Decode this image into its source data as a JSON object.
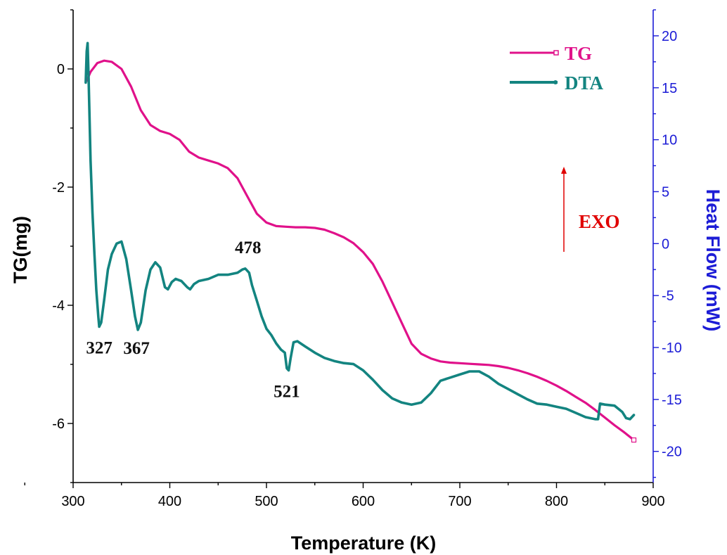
{
  "chart_data": {
    "type": "line",
    "title": "",
    "xlabel": "Temperature (K)",
    "ylabel": "TG(mg)",
    "y2label": "Heat Flow (mW)",
    "xlim": [
      300,
      900
    ],
    "ylim": [
      -7,
      1
    ],
    "y2lim": [
      -23,
      22.5
    ],
    "x_ticks": [
      "300",
      "400",
      "500",
      "600",
      "700",
      "800",
      "900"
    ],
    "y_ticks": [
      "0",
      "-2",
      "-4",
      "-6"
    ],
    "y2_ticks": [
      "20",
      "15",
      "10",
      "5",
      "0",
      "-5",
      "-10",
      "-15",
      "-20"
    ],
    "legend": {
      "position": "top-right",
      "entries": [
        "TG",
        "DTA"
      ]
    },
    "series": [
      {
        "name": "TG",
        "axis": "left",
        "color": "#e0118a",
        "points": [
          [
            314,
            -0.2
          ],
          [
            318,
            -0.05
          ],
          [
            325,
            0.1
          ],
          [
            332,
            0.14
          ],
          [
            340,
            0.12
          ],
          [
            350,
            0.0
          ],
          [
            360,
            -0.3
          ],
          [
            370,
            -0.7
          ],
          [
            380,
            -0.95
          ],
          [
            390,
            -1.05
          ],
          [
            400,
            -1.1
          ],
          [
            410,
            -1.2
          ],
          [
            420,
            -1.4
          ],
          [
            430,
            -1.5
          ],
          [
            440,
            -1.55
          ],
          [
            450,
            -1.6
          ],
          [
            460,
            -1.68
          ],
          [
            470,
            -1.85
          ],
          [
            480,
            -2.15
          ],
          [
            490,
            -2.45
          ],
          [
            500,
            -2.6
          ],
          [
            510,
            -2.66
          ],
          [
            520,
            -2.67
          ],
          [
            530,
            -2.68
          ],
          [
            540,
            -2.68
          ],
          [
            550,
            -2.69
          ],
          [
            560,
            -2.72
          ],
          [
            570,
            -2.78
          ],
          [
            580,
            -2.85
          ],
          [
            590,
            -2.95
          ],
          [
            600,
            -3.1
          ],
          [
            610,
            -3.3
          ],
          [
            620,
            -3.6
          ],
          [
            630,
            -3.95
          ],
          [
            640,
            -4.3
          ],
          [
            650,
            -4.65
          ],
          [
            660,
            -4.82
          ],
          [
            670,
            -4.9
          ],
          [
            680,
            -4.95
          ],
          [
            690,
            -4.97
          ],
          [
            700,
            -4.98
          ],
          [
            710,
            -4.99
          ],
          [
            720,
            -5.0
          ],
          [
            730,
            -5.01
          ],
          [
            740,
            -5.03
          ],
          [
            750,
            -5.06
          ],
          [
            760,
            -5.1
          ],
          [
            770,
            -5.15
          ],
          [
            780,
            -5.21
          ],
          [
            790,
            -5.28
          ],
          [
            800,
            -5.36
          ],
          [
            810,
            -5.45
          ],
          [
            820,
            -5.55
          ],
          [
            830,
            -5.65
          ],
          [
            840,
            -5.77
          ],
          [
            850,
            -5.9
          ],
          [
            860,
            -6.03
          ],
          [
            870,
            -6.15
          ],
          [
            880,
            -6.28
          ]
        ]
      },
      {
        "name": "DTA",
        "axis": "right",
        "color": "#138480",
        "points": [
          [
            313,
            15.5
          ],
          [
            314,
            18.5
          ],
          [
            315,
            19.3
          ],
          [
            316,
            16.0
          ],
          [
            318,
            8.0
          ],
          [
            320,
            3.0
          ],
          [
            322,
            -1.0
          ],
          [
            324,
            -4.5
          ],
          [
            326,
            -7.0
          ],
          [
            327,
            -8.0
          ],
          [
            329,
            -7.6
          ],
          [
            332,
            -5.5
          ],
          [
            336,
            -2.5
          ],
          [
            340,
            -1.0
          ],
          [
            345,
            0.0
          ],
          [
            350,
            0.2
          ],
          [
            355,
            -1.5
          ],
          [
            360,
            -4.5
          ],
          [
            364,
            -7.0
          ],
          [
            367,
            -8.3
          ],
          [
            370,
            -7.6
          ],
          [
            375,
            -4.5
          ],
          [
            380,
            -2.5
          ],
          [
            385,
            -1.8
          ],
          [
            390,
            -2.3
          ],
          [
            395,
            -4.2
          ],
          [
            398,
            -4.4
          ],
          [
            402,
            -3.7
          ],
          [
            406,
            -3.4
          ],
          [
            412,
            -3.6
          ],
          [
            418,
            -4.2
          ],
          [
            421,
            -4.4
          ],
          [
            425,
            -3.9
          ],
          [
            430,
            -3.6
          ],
          [
            440,
            -3.4
          ],
          [
            450,
            -3.0
          ],
          [
            460,
            -3.0
          ],
          [
            470,
            -2.8
          ],
          [
            475,
            -2.5
          ],
          [
            478,
            -2.4
          ],
          [
            482,
            -2.8
          ],
          [
            485,
            -4.0
          ],
          [
            490,
            -5.5
          ],
          [
            495,
            -7.0
          ],
          [
            500,
            -8.2
          ],
          [
            505,
            -8.8
          ],
          [
            510,
            -9.6
          ],
          [
            515,
            -10.2
          ],
          [
            519,
            -10.5
          ],
          [
            521,
            -12.0
          ],
          [
            523,
            -12.2
          ],
          [
            525,
            -11.0
          ],
          [
            528,
            -9.5
          ],
          [
            532,
            -9.4
          ],
          [
            540,
            -9.9
          ],
          [
            550,
            -10.5
          ],
          [
            560,
            -11.0
          ],
          [
            570,
            -11.3
          ],
          [
            580,
            -11.5
          ],
          [
            590,
            -11.6
          ],
          [
            600,
            -12.2
          ],
          [
            610,
            -13.1
          ],
          [
            620,
            -14.1
          ],
          [
            630,
            -14.9
          ],
          [
            640,
            -15.3
          ],
          [
            650,
            -15.5
          ],
          [
            660,
            -15.3
          ],
          [
            670,
            -14.4
          ],
          [
            680,
            -13.2
          ],
          [
            690,
            -12.9
          ],
          [
            700,
            -12.6
          ],
          [
            710,
            -12.3
          ],
          [
            720,
            -12.3
          ],
          [
            730,
            -12.8
          ],
          [
            740,
            -13.5
          ],
          [
            750,
            -14.0
          ],
          [
            760,
            -14.5
          ],
          [
            770,
            -15.0
          ],
          [
            780,
            -15.4
          ],
          [
            790,
            -15.5
          ],
          [
            800,
            -15.7
          ],
          [
            810,
            -15.9
          ],
          [
            820,
            -16.3
          ],
          [
            830,
            -16.7
          ],
          [
            840,
            -16.9
          ],
          [
            843,
            -16.9
          ],
          [
            845,
            -15.4
          ],
          [
            850,
            -15.5
          ],
          [
            860,
            -15.6
          ],
          [
            868,
            -16.2
          ],
          [
            872,
            -16.8
          ],
          [
            876,
            -16.9
          ],
          [
            880,
            -16.5
          ]
        ]
      }
    ],
    "annotations": [
      {
        "text": "327",
        "x": 327,
        "y2": -8.0
      },
      {
        "text": "367",
        "x": 367,
        "y2": -8.3
      },
      {
        "text": "478",
        "x": 478,
        "y2": -2.4
      },
      {
        "text": "521",
        "x": 521,
        "y2": -12.2
      }
    ],
    "exo": {
      "text": "EXO",
      "color": "#e00000"
    }
  }
}
